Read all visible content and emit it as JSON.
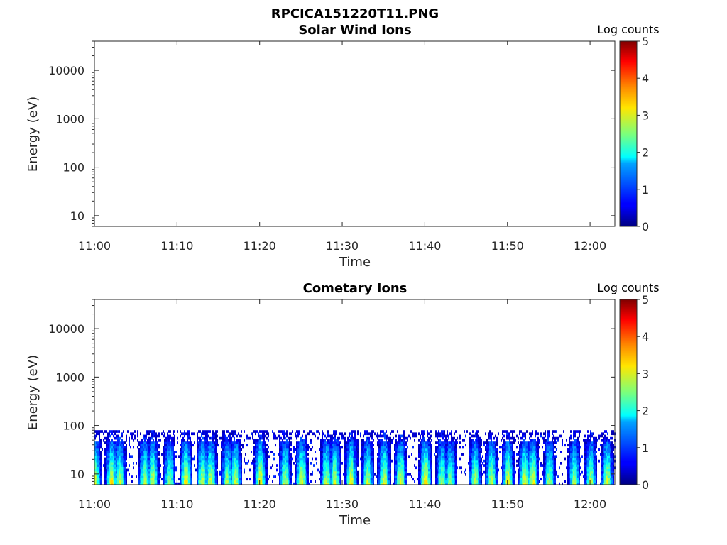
{
  "figure_title": "RPCICA151220T11.PNG",
  "colorbar": {
    "label": "Log counts",
    "ticks": [
      "0",
      "1",
      "2",
      "3",
      "4",
      "5"
    ],
    "colormap": "jet",
    "range": [
      0,
      5
    ]
  },
  "chart_data": [
    {
      "type": "heatmap",
      "title": "Solar Wind Ions",
      "xlabel": "Time",
      "ylabel": "Energy (eV)",
      "x_tick_labels": [
        "11:00",
        "11:10",
        "11:20",
        "11:30",
        "11:40",
        "11:50",
        "12:00"
      ],
      "y_tick_labels": [
        "10",
        "100",
        "1000",
        "10000"
      ],
      "y_scale": "log",
      "xlim": [
        "11:00",
        "12:03"
      ],
      "ylim": [
        6,
        40000
      ],
      "bursts": []
    },
    {
      "type": "heatmap",
      "title": "Cometary Ions",
      "xlabel": "Time",
      "ylabel": "Energy (eV)",
      "x_tick_labels": [
        "11:00",
        "11:10",
        "11:20",
        "11:30",
        "11:40",
        "11:50",
        "12:00"
      ],
      "y_tick_labels": [
        "10",
        "100",
        "1000",
        "10000"
      ],
      "y_scale": "log",
      "xlim": [
        "11:00",
        "12:03"
      ],
      "ylim": [
        6,
        40000
      ],
      "energy_max_eV": 80,
      "bursts": [
        {
          "t": "11:00",
          "peak": 3.0
        },
        {
          "t": "11:02",
          "peak": 3.2
        },
        {
          "t": "11:03",
          "peak": 2.9
        },
        {
          "t": "11:06",
          "peak": 2.8
        },
        {
          "t": "11:07",
          "peak": 3.0
        },
        {
          "t": "11:09",
          "peak": 2.6
        },
        {
          "t": "11:11",
          "peak": 3.1
        },
        {
          "t": "11:13",
          "peak": 2.9
        },
        {
          "t": "11:14",
          "peak": 3.0
        },
        {
          "t": "11:16",
          "peak": 2.7
        },
        {
          "t": "11:17",
          "peak": 3.0
        },
        {
          "t": "11:20",
          "peak": 3.3
        },
        {
          "t": "11:23",
          "peak": 2.8
        },
        {
          "t": "11:25",
          "peak": 3.1
        },
        {
          "t": "11:28",
          "peak": 2.8
        },
        {
          "t": "11:29",
          "peak": 3.0
        },
        {
          "t": "11:31",
          "peak": 3.2
        },
        {
          "t": "11:33",
          "peak": 2.9
        },
        {
          "t": "11:35",
          "peak": 3.1
        },
        {
          "t": "11:37",
          "peak": 3.0
        },
        {
          "t": "11:40",
          "peak": 3.3
        },
        {
          "t": "11:42",
          "peak": 2.7
        },
        {
          "t": "11:43",
          "peak": 2.6
        },
        {
          "t": "11:46",
          "peak": 2.9
        },
        {
          "t": "11:48",
          "peak": 3.0
        },
        {
          "t": "11:50",
          "peak": 3.2
        },
        {
          "t": "11:52",
          "peak": 3.0
        },
        {
          "t": "11:53",
          "peak": 3.1
        },
        {
          "t": "11:55",
          "peak": 2.7
        },
        {
          "t": "11:58",
          "peak": 2.8
        },
        {
          "t": "12:00",
          "peak": 2.9
        },
        {
          "t": "12:02",
          "peak": 3.1
        }
      ]
    }
  ]
}
